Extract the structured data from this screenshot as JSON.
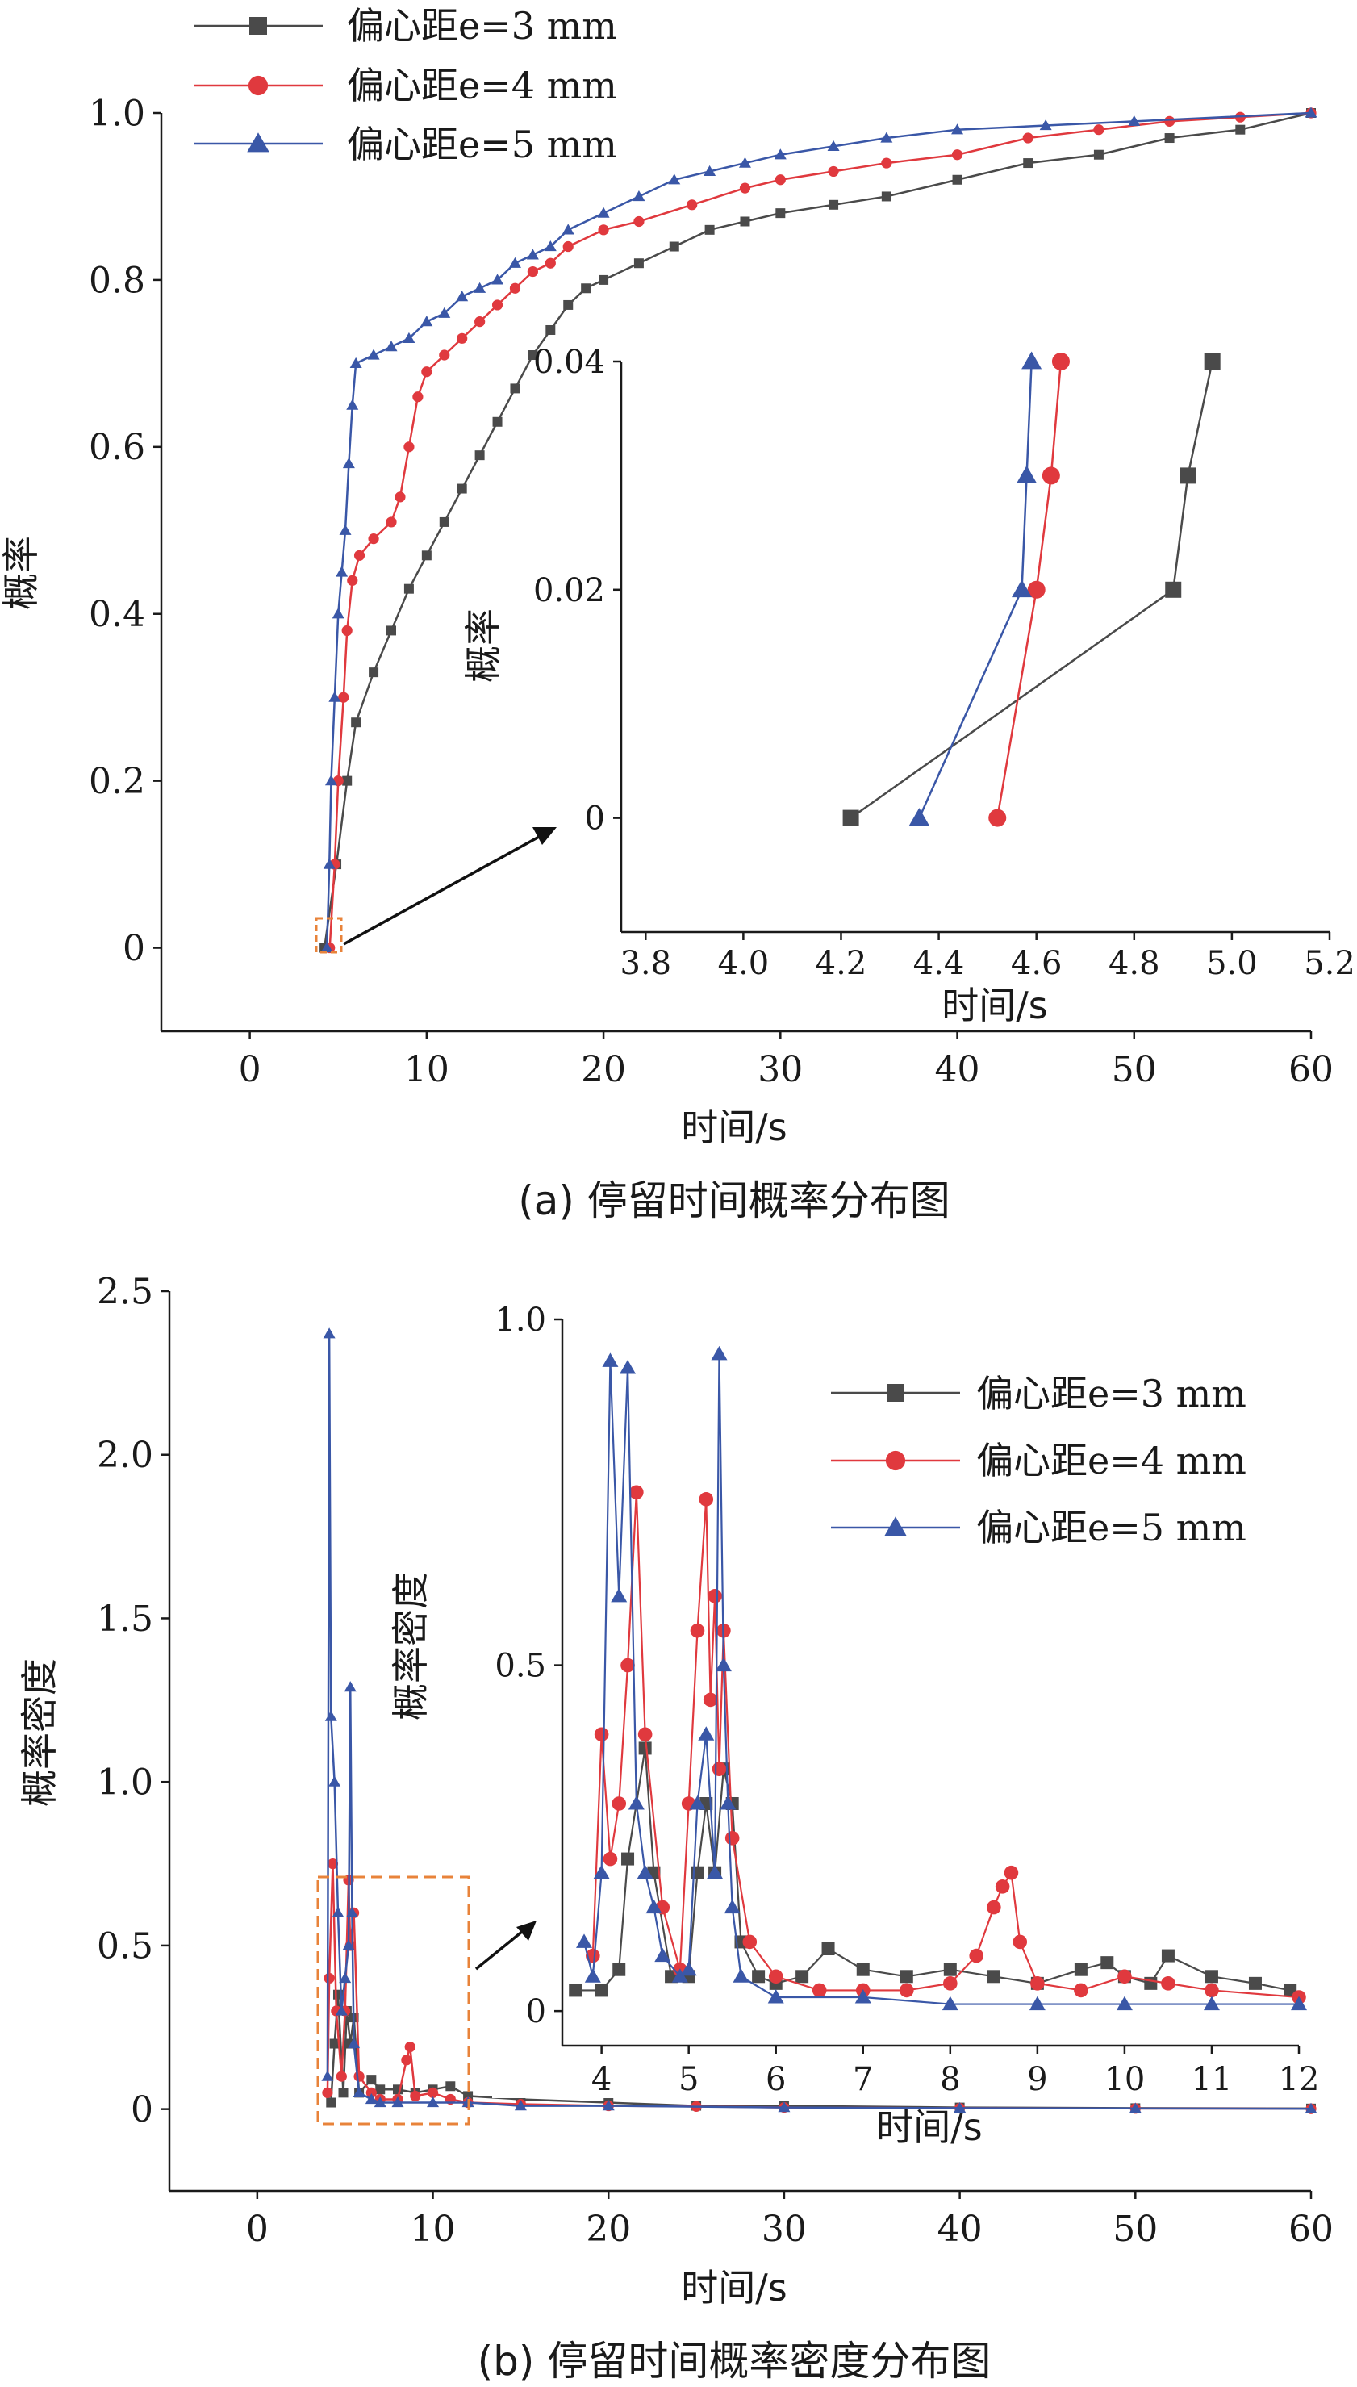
{
  "colors": {
    "s3": "#4a4a4a",
    "s4": "#e0393e",
    "s5": "#3a57a7",
    "zoom": "#e8833a",
    "axis": "#1a1a1a"
  },
  "legend": [
    "偏心距e=3 mm",
    "偏心距e=4 mm",
    "偏心距e=5 mm"
  ],
  "chart_data": [
    {
      "type": "line",
      "xlabel": "时间/s",
      "ylabel": "概率",
      "caption": "(a) 停留时间概率分布图",
      "xlim": [
        -5,
        60
      ],
      "ylim": [
        -0.1,
        1.0
      ],
      "xticks": [
        "0",
        "10",
        "20",
        "30",
        "40",
        "50",
        "60"
      ],
      "yticks": [
        "0",
        "0.2",
        "0.4",
        "0.6",
        "0.8",
        "1.0"
      ],
      "series": [
        {
          "name": "偏心距e=3 mm",
          "marker": "square",
          "x": [
            4.22,
            4.9,
            5.5,
            6,
            7,
            8,
            9,
            10,
            11,
            12,
            13,
            14,
            15,
            16,
            17,
            18,
            19,
            20,
            22,
            24,
            26,
            28,
            30,
            33,
            36,
            40,
            44,
            48,
            52,
            56,
            60
          ],
          "y": [
            0,
            0.1,
            0.2,
            0.27,
            0.33,
            0.38,
            0.43,
            0.47,
            0.51,
            0.55,
            0.59,
            0.63,
            0.67,
            0.71,
            0.74,
            0.77,
            0.79,
            0.8,
            0.82,
            0.84,
            0.86,
            0.87,
            0.88,
            0.89,
            0.9,
            0.92,
            0.94,
            0.95,
            0.97,
            0.98,
            1.0
          ]
        },
        {
          "name": "偏心距e=4 mm",
          "marker": "circle",
          "x": [
            4.52,
            4.8,
            5.0,
            5.3,
            5.5,
            5.8,
            6.2,
            7,
            8,
            8.5,
            9,
            9.5,
            10,
            11,
            12,
            13,
            14,
            15,
            16,
            17,
            18,
            20,
            22,
            25,
            28,
            30,
            33,
            36,
            40,
            44,
            48,
            52,
            56,
            60
          ],
          "y": [
            0,
            0.1,
            0.2,
            0.3,
            0.38,
            0.44,
            0.47,
            0.49,
            0.51,
            0.54,
            0.6,
            0.66,
            0.69,
            0.71,
            0.73,
            0.75,
            0.77,
            0.79,
            0.81,
            0.82,
            0.84,
            0.86,
            0.87,
            0.89,
            0.91,
            0.92,
            0.93,
            0.94,
            0.95,
            0.97,
            0.98,
            0.99,
            0.995,
            1.0
          ]
        },
        {
          "name": "偏心距e=5 mm",
          "marker": "triangle",
          "x": [
            4.36,
            4.5,
            4.6,
            4.8,
            5.0,
            5.2,
            5.4,
            5.6,
            5.8,
            6.0,
            7,
            8,
            9,
            10,
            11,
            12,
            13,
            14,
            15,
            16,
            17,
            18,
            20,
            22,
            24,
            26,
            28,
            30,
            33,
            36,
            40,
            45,
            50,
            60
          ],
          "y": [
            0,
            0.1,
            0.2,
            0.3,
            0.4,
            0.45,
            0.5,
            0.58,
            0.65,
            0.7,
            0.71,
            0.72,
            0.73,
            0.75,
            0.76,
            0.78,
            0.79,
            0.8,
            0.82,
            0.83,
            0.84,
            0.86,
            0.88,
            0.9,
            0.92,
            0.93,
            0.94,
            0.95,
            0.96,
            0.97,
            0.98,
            0.985,
            0.99,
            1.0
          ]
        }
      ]
    },
    {
      "type": "line",
      "xlabel": "时间/s",
      "ylabel": "概率",
      "xlim": [
        3.75,
        5.2
      ],
      "ylim": [
        -0.01,
        0.04
      ],
      "xticks": [
        "3.8",
        "4.0",
        "4.2",
        "4.4",
        "4.6",
        "4.8",
        "5.0",
        "5.2"
      ],
      "yticks": [
        "0",
        "0.02",
        "0.04"
      ],
      "series": [
        {
          "name": "偏心距e=3 mm",
          "x": [
            4.22,
            4.88,
            4.91,
            4.96
          ],
          "y": [
            0,
            0.02,
            0.03,
            0.04
          ]
        },
        {
          "name": "偏心距e=4 mm",
          "x": [
            4.52,
            4.6,
            4.63,
            4.65
          ],
          "y": [
            0,
            0.02,
            0.03,
            0.04
          ]
        },
        {
          "name": "偏心距e=5 mm",
          "x": [
            4.36,
            4.57,
            4.58,
            4.59
          ],
          "y": [
            0,
            0.02,
            0.03,
            0.04
          ]
        }
      ]
    },
    {
      "type": "line",
      "xlabel": "时间/s",
      "ylabel": "概率密度",
      "caption": "(b) 停留时间概率密度分布图",
      "xlim": [
        -5,
        60
      ],
      "ylim": [
        -0.25,
        2.5
      ],
      "xticks": [
        "0",
        "10",
        "20",
        "30",
        "40",
        "50",
        "60"
      ],
      "yticks": [
        "0",
        "0.5",
        "1.0",
        "1.5",
        "2.0",
        "2.5"
      ],
      "series": [
        {
          "name": "偏心距e=3 mm",
          "x": [
            4.2,
            4.4,
            4.6,
            4.9,
            5.1,
            5.3,
            5.5,
            5.8,
            6.5,
            7,
            8,
            9,
            10,
            11,
            12,
            15,
            20,
            25,
            30,
            40,
            50,
            60
          ],
          "y": [
            0.02,
            0.2,
            0.35,
            0.05,
            0.3,
            0.2,
            0.28,
            0.05,
            0.09,
            0.06,
            0.06,
            0.05,
            0.06,
            0.07,
            0.04,
            0.03,
            0.02,
            0.01,
            0.01,
            0.005,
            0.003,
            0.002
          ]
        },
        {
          "name": "偏心距e=4 mm",
          "x": [
            4.0,
            4.1,
            4.3,
            4.5,
            4.8,
            5.0,
            5.2,
            5.3,
            5.5,
            5.8,
            6.5,
            7,
            8,
            8.5,
            8.7,
            9,
            10,
            11,
            12,
            15,
            20,
            25,
            30,
            40,
            50,
            60
          ],
          "y": [
            0.05,
            0.4,
            0.75,
            0.3,
            0.1,
            0.3,
            0.7,
            0.5,
            0.6,
            0.1,
            0.05,
            0.03,
            0.03,
            0.15,
            0.19,
            0.04,
            0.05,
            0.03,
            0.02,
            0.015,
            0.01,
            0.008,
            0.005,
            0.003,
            0.002,
            0.001
          ]
        },
        {
          "name": "偏心距e=5 mm",
          "x": [
            4.0,
            4.1,
            4.2,
            4.4,
            4.6,
            4.8,
            5.0,
            5.2,
            5.3,
            5.4,
            5.5,
            5.8,
            6.5,
            7,
            8,
            10,
            12,
            15,
            20,
            30,
            40,
            50,
            60
          ],
          "y": [
            0.1,
            2.37,
            1.2,
            1.0,
            0.6,
            0.3,
            0.4,
            0.5,
            1.29,
            0.6,
            0.2,
            0.05,
            0.03,
            0.02,
            0.02,
            0.02,
            0.02,
            0.01,
            0.01,
            0.005,
            0.003,
            0.002,
            0.001
          ]
        }
      ]
    },
    {
      "type": "line",
      "xlabel": "时间/s",
      "ylabel": "概率密度",
      "xlim": [
        3.55,
        12
      ],
      "ylim": [
        -0.05,
        1.0
      ],
      "xticks": [
        "4",
        "5",
        "6",
        "7",
        "8",
        "9",
        "10",
        "11",
        "12"
      ],
      "yticks": [
        "0",
        "0.5",
        "1.0"
      ],
      "series": [
        {
          "name": "偏心距e=3 mm",
          "x": [
            3.7,
            4.0,
            4.2,
            4.3,
            4.5,
            4.6,
            4.8,
            5.0,
            5.1,
            5.2,
            5.3,
            5.4,
            5.5,
            5.6,
            5.8,
            6.0,
            6.3,
            6.6,
            7.0,
            7.5,
            8.0,
            8.5,
            9.0,
            9.5,
            9.8,
            10.0,
            10.3,
            10.5,
            11.0,
            11.5,
            11.9
          ],
          "y": [
            0.03,
            0.03,
            0.06,
            0.22,
            0.38,
            0.2,
            0.05,
            0.05,
            0.2,
            0.3,
            0.2,
            0.35,
            0.3,
            0.1,
            0.05,
            0.04,
            0.05,
            0.09,
            0.06,
            0.05,
            0.06,
            0.05,
            0.04,
            0.06,
            0.07,
            0.05,
            0.04,
            0.08,
            0.05,
            0.04,
            0.03
          ]
        },
        {
          "name": "偏心距e=4 mm",
          "x": [
            3.9,
            4.0,
            4.1,
            4.2,
            4.3,
            4.4,
            4.5,
            4.7,
            4.9,
            5.0,
            5.1,
            5.2,
            5.25,
            5.3,
            5.35,
            5.4,
            5.5,
            5.7,
            6.0,
            6.5,
            7.0,
            7.5,
            8.0,
            8.3,
            8.5,
            8.6,
            8.7,
            8.8,
            9.0,
            9.5,
            10.0,
            10.5,
            11.0,
            12.0
          ],
          "y": [
            0.08,
            0.4,
            0.22,
            0.3,
            0.5,
            0.75,
            0.4,
            0.15,
            0.06,
            0.3,
            0.55,
            0.74,
            0.45,
            0.6,
            0.35,
            0.55,
            0.25,
            0.1,
            0.05,
            0.03,
            0.03,
            0.03,
            0.04,
            0.08,
            0.15,
            0.18,
            0.2,
            0.1,
            0.04,
            0.03,
            0.05,
            0.04,
            0.03,
            0.02
          ]
        },
        {
          "name": "偏心距e=5 mm",
          "x": [
            3.8,
            3.9,
            4.0,
            4.1,
            4.2,
            4.3,
            4.4,
            4.5,
            4.6,
            4.7,
            4.9,
            5.0,
            5.1,
            5.2,
            5.3,
            5.35,
            5.4,
            5.45,
            5.5,
            5.6,
            6.0,
            7.0,
            8.0,
            9.0,
            10.0,
            11.0,
            12.0
          ],
          "y": [
            0.1,
            0.05,
            0.2,
            0.94,
            0.6,
            0.93,
            0.3,
            0.2,
            0.15,
            0.08,
            0.05,
            0.06,
            0.3,
            0.4,
            0.2,
            0.95,
            0.5,
            0.3,
            0.15,
            0.05,
            0.02,
            0.02,
            0.01,
            0.01,
            0.01,
            0.01,
            0.01
          ]
        }
      ]
    }
  ]
}
